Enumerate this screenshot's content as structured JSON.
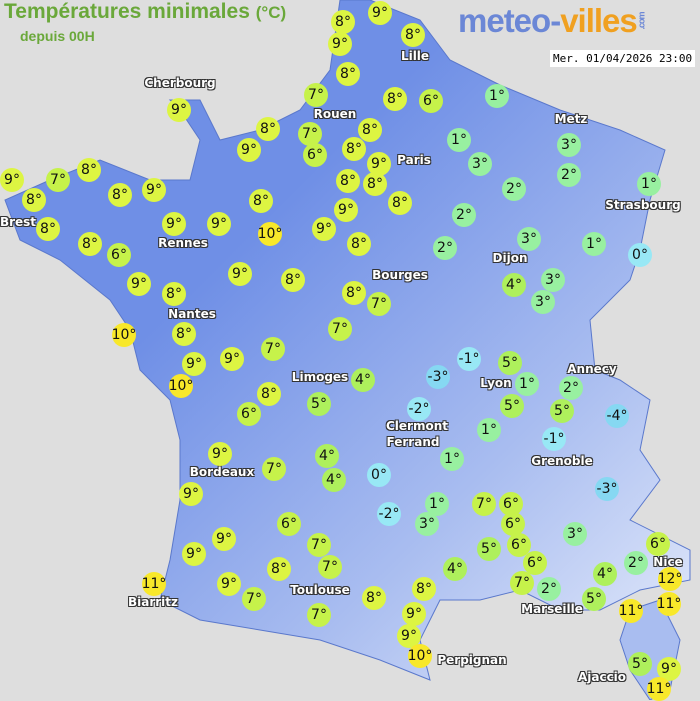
{
  "title": "Températures minimales",
  "title_unit": "(°C)",
  "subtitle": "depuis 00H",
  "logo": {
    "part1": "meteo-",
    "part2": "villes",
    "part3": ".com"
  },
  "timestamp": "Mer. 01/04/2026 23:00",
  "colors": {
    "sea": "#dedede",
    "land": "#6f8fe6",
    "t_ge10": "#f8e82a",
    "t_8_9": "#ddf542",
    "t_6_7": "#c6f24a",
    "t_4_5": "#aef05c",
    "t_1_3": "#98f0a0",
    "t_le0": "#98e8f5",
    "t_le_minus3": "#86d8f2"
  },
  "cities": [
    "Cherbourg",
    "Lille",
    "Rouen",
    "Paris",
    "Metz",
    "Strasbourg",
    "Brest",
    "Rennes",
    "Dijon",
    "Bourges",
    "Nantes",
    "Annecy",
    "Limoges",
    "Lyon",
    "Clermont",
    "Ferrand",
    "Grenoble",
    "Bordeaux",
    "Biarritz",
    "Toulouse",
    "Marseille",
    "Nice",
    "Perpignan",
    "Ajaccio"
  ],
  "temperatures": [
    9,
    8,
    9,
    8,
    8,
    7,
    8,
    6,
    1,
    9,
    8,
    9,
    7,
    6,
    8,
    8,
    9,
    8,
    8,
    8,
    9,
    9,
    8,
    1,
    3,
    3,
    2,
    2,
    2,
    1,
    3,
    2,
    1,
    0,
    4,
    3,
    3,
    9,
    8,
    7,
    8,
    8,
    9,
    8,
    8,
    8,
    6,
    9,
    9,
    10,
    9,
    8,
    9,
    8,
    8,
    7,
    10,
    8,
    7,
    9,
    9,
    7,
    10,
    8,
    6,
    5,
    4,
    9,
    7,
    9,
    4,
    4,
    6,
    7,
    7,
    9,
    9,
    8,
    11,
    9,
    7,
    7,
    -1,
    5,
    -3,
    1,
    -2,
    5,
    2,
    5,
    -4,
    1,
    -1,
    1,
    0,
    -3,
    1,
    7,
    6,
    -2,
    3,
    6,
    3,
    5,
    6,
    6,
    2,
    6,
    4,
    7,
    2,
    4,
    12,
    8,
    8,
    5,
    11,
    11,
    9,
    9,
    10,
    5,
    9,
    11
  ]
}
